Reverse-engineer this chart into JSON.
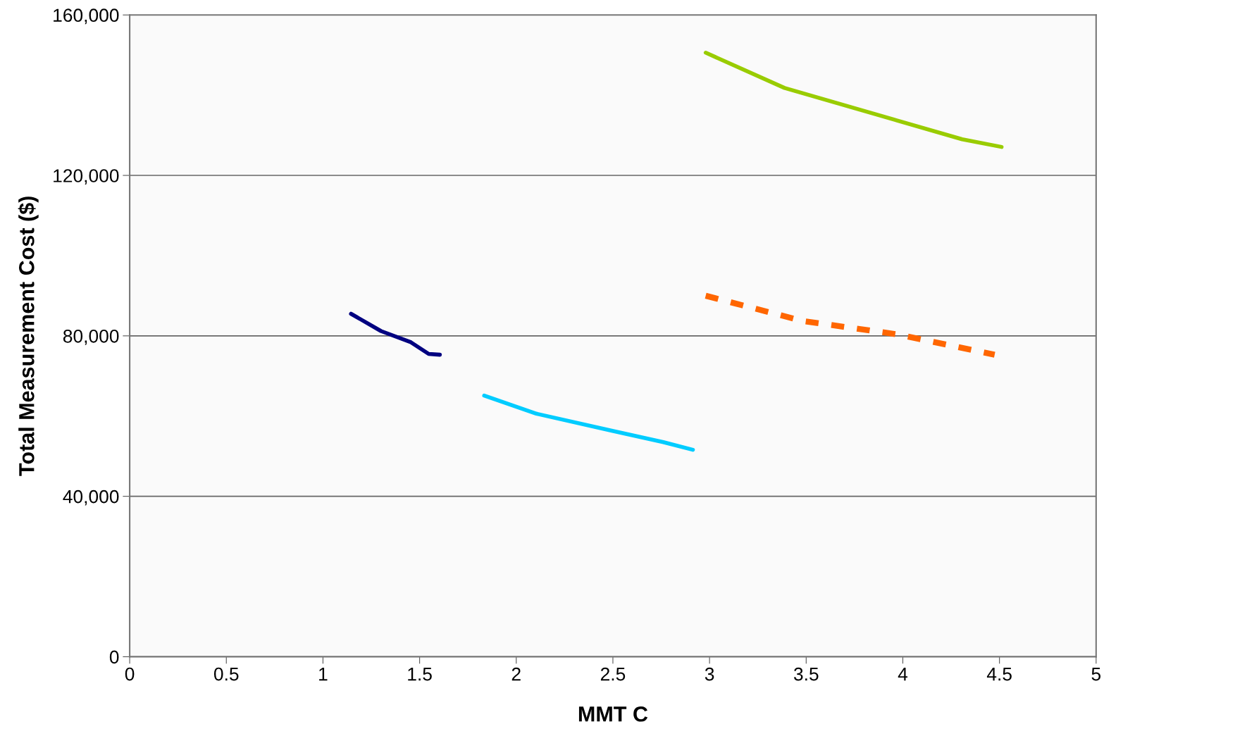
{
  "chart_data": {
    "type": "line",
    "xlabel": "MMT C",
    "ylabel": "Total Measurement Cost ($)",
    "xlim": [
      0,
      5
    ],
    "xticks": [
      0,
      0.5,
      1,
      1.5,
      2,
      2.5,
      3,
      3.5,
      4,
      4.5,
      5
    ],
    "ylim": [
      0,
      160000
    ],
    "yticks": [
      {
        "value": 0,
        "label": "0"
      },
      {
        "value": 40000,
        "label": "40,000"
      },
      {
        "value": 80000,
        "label": "80,000"
      },
      {
        "value": 120000,
        "label": "120,000"
      },
      {
        "value": 160000,
        "label": "160,000"
      }
    ],
    "grid": "y",
    "legend": false,
    "marker": "none",
    "series": [
      {
        "color": "#000080",
        "line_style": "solid",
        "x": [
          1.145,
          1.3,
          1.455,
          1.547,
          1.605
        ],
        "values": [
          85500,
          81200,
          78400,
          75500,
          75300
        ]
      },
      {
        "color": "#00ccff",
        "line_style": "solid",
        "x": [
          1.834,
          2.104,
          2.498,
          2.761,
          2.914
        ],
        "values": [
          65100,
          60600,
          56300,
          53500,
          51600
        ]
      },
      {
        "color": "#99cc00",
        "line_style": "solid",
        "x": [
          2.98,
          3.388,
          4.307,
          4.511
        ],
        "values": [
          150600,
          141800,
          129000,
          127100
        ]
      },
      {
        "color": "#ff6600",
        "line_style": "dashed",
        "x": [
          2.98,
          3.483,
          3.968,
          4.475
        ],
        "values": [
          90000,
          83700,
          80400,
          75300
        ]
      }
    ]
  }
}
